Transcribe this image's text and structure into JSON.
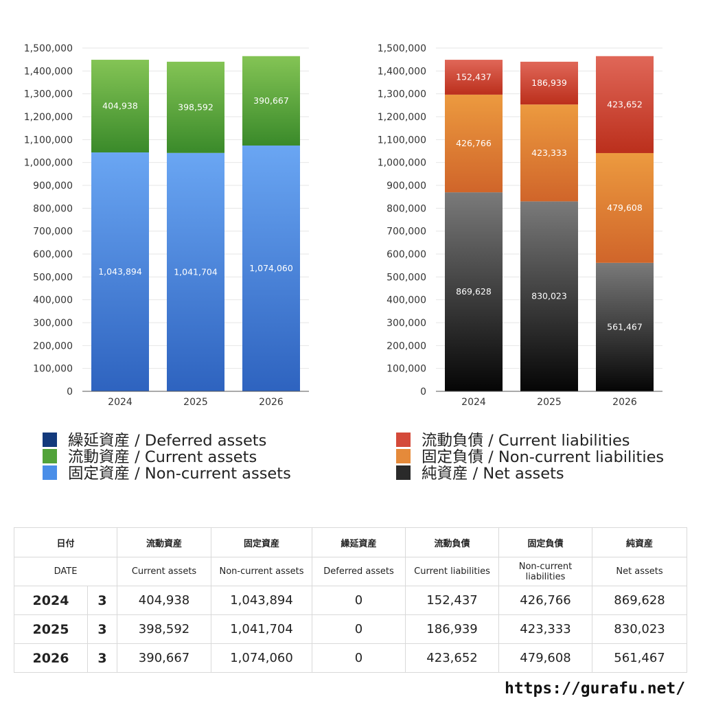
{
  "chart_data": [
    {
      "type": "bar",
      "stacked": true,
      "categories": [
        "2024",
        "2025",
        "2026"
      ],
      "ylim": [
        0,
        1500000
      ],
      "yticks": [
        0,
        100000,
        200000,
        300000,
        400000,
        500000,
        600000,
        700000,
        800000,
        900000,
        1000000,
        1100000,
        1200000,
        1300000,
        1400000,
        1500000
      ],
      "grid": true,
      "series": [
        {
          "name": "固定資産 / Non-current assets",
          "values": [
            1043894,
            1041704,
            1074060
          ],
          "color_top": "#6aa6f3",
          "color_bottom": "#2e63bf"
        },
        {
          "name": "流動資産 / Current assets",
          "values": [
            404938,
            398592,
            390667
          ],
          "color_top": "#84c455",
          "color_bottom": "#3a8a2a"
        }
      ]
    },
    {
      "type": "bar",
      "stacked": true,
      "categories": [
        "2024",
        "2025",
        "2026"
      ],
      "ylim": [
        0,
        1500000
      ],
      "yticks": [
        0,
        100000,
        200000,
        300000,
        400000,
        500000,
        600000,
        700000,
        800000,
        900000,
        1000000,
        1100000,
        1200000,
        1300000,
        1400000,
        1500000
      ],
      "grid": true,
      "series": [
        {
          "name": "純資産 / Net assets",
          "values": [
            869628,
            830023,
            561467
          ],
          "color_top": "#7a7a7a",
          "color_bottom": "#050505"
        },
        {
          "name": "固定負債 / Non-current liabilities",
          "values": [
            426766,
            423333,
            479608
          ],
          "color_top": "#ec9a3f",
          "color_bottom": "#d0652a"
        },
        {
          "name": "流動負債 / Current liabilities",
          "values": [
            152437,
            186939,
            423652
          ],
          "color_top": "#e06758",
          "color_bottom": "#bb2f1c"
        }
      ]
    }
  ],
  "legend_assets": [
    {
      "label": "繰延資産 / Deferred assets",
      "color": "#133a7c"
    },
    {
      "label": "流動資産 / Current assets",
      "color": "#52a33a"
    },
    {
      "label": "固定資産 / Non-current assets",
      "color": "#4a8ee8"
    }
  ],
  "legend_liab": [
    {
      "label": "流動負債 / Current liabilities",
      "color": "#d44a3a"
    },
    {
      "label": "固定負債 / Non-current liabilities",
      "color": "#e58a3a"
    },
    {
      "label": "純資産 / Net assets",
      "color": "#2a2a2a"
    }
  ],
  "table": {
    "header_jp": [
      "日付",
      "",
      "流動資産",
      "固定資産",
      "繰延資産",
      "流動負債",
      "固定負債",
      "純資産"
    ],
    "header_en": [
      "DATE",
      "",
      "Current assets",
      "Non-current assets",
      "Deferred assets",
      "Current liabilities",
      "Non-current liabilities",
      "Net assets"
    ],
    "rows": [
      [
        "2024",
        "3",
        "404,938",
        "1,043,894",
        "0",
        "152,437",
        "426,766",
        "869,628"
      ],
      [
        "2025",
        "3",
        "398,592",
        "1,041,704",
        "0",
        "186,939",
        "423,333",
        "830,023"
      ],
      [
        "2026",
        "3",
        "390,667",
        "1,074,060",
        "0",
        "423,652",
        "479,608",
        "561,467"
      ]
    ]
  },
  "source": "https://gurafu.net/"
}
